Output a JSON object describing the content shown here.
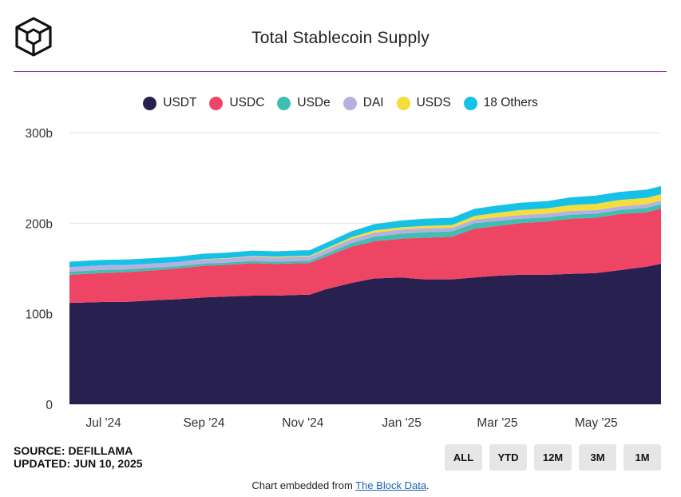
{
  "header": {
    "title": "Total Stablecoin Supply"
  },
  "footer": {
    "source": "SOURCE: DEFILLAMA",
    "updated": "UPDATED: JUN 10, 2025",
    "embed_prefix": "Chart embedded from ",
    "embed_link": "The Block Data",
    "embed_suffix": "."
  },
  "range_buttons": [
    {
      "label": "ALL"
    },
    {
      "label": "YTD"
    },
    {
      "label": "12M"
    },
    {
      "label": "3M"
    },
    {
      "label": "1M"
    }
  ],
  "chart_data": {
    "type": "area",
    "title": "Total Stablecoin Supply",
    "stacked": true,
    "x": [
      "2024-06-10",
      "2024-07-01",
      "2024-07-15",
      "2024-08-01",
      "2024-08-15",
      "2024-09-01",
      "2024-09-15",
      "2024-10-01",
      "2024-10-15",
      "2024-11-01",
      "2024-11-05",
      "2024-11-15",
      "2024-12-01",
      "2024-12-15",
      "2025-01-01",
      "2025-01-15",
      "2025-02-01",
      "2025-02-15",
      "2025-03-01",
      "2025-03-15",
      "2025-04-01",
      "2025-04-15",
      "2025-05-01",
      "2025-05-15",
      "2025-06-01",
      "2025-06-10"
    ],
    "x_ticks": [
      "Jul '24",
      "Sep '24",
      "Nov '24",
      "Jan '25",
      "Mar '25",
      "May '25"
    ],
    "x_tick_dates": [
      "2024-07-01",
      "2024-09-01",
      "2024-11-01",
      "2025-01-01",
      "2025-03-01",
      "2025-05-01"
    ],
    "y_ticks": [
      "0",
      "100b",
      "200b",
      "300b"
    ],
    "ylim": [
      0,
      300
    ],
    "y_unit": "b",
    "grid": true,
    "legend_position": "top",
    "series": [
      {
        "name": "USDT",
        "color": "#28204f",
        "values": [
          112,
          113,
          113,
          115,
          116,
          118,
          119,
          120,
          120,
          121,
          121,
          127,
          134,
          139,
          140,
          138,
          138,
          140,
          142,
          143,
          143,
          144,
          145,
          148,
          152,
          155
        ]
      },
      {
        "name": "USDC",
        "color": "#ef4565",
        "values": [
          31,
          32,
          33,
          33,
          34,
          35,
          35,
          36,
          35,
          35,
          35,
          36,
          40,
          41,
          43,
          46,
          47,
          54,
          55,
          57,
          59,
          61,
          61,
          62,
          60,
          61
        ]
      },
      {
        "name": "USDe",
        "color": "#3fbfb2",
        "values": [
          3.5,
          3.5,
          3,
          3,
          2.5,
          2.5,
          2.5,
          2.5,
          2.5,
          2.5,
          2.5,
          3,
          4,
          5,
          5.5,
          6,
          6,
          6,
          5.5,
          5,
          4.5,
          4.5,
          4.5,
          4.5,
          5,
          5
        ]
      },
      {
        "name": "DAI",
        "color": "#b6b0e0",
        "values": [
          5,
          5,
          5,
          4.5,
          4.5,
          4.5,
          4.5,
          4.5,
          4.5,
          4.5,
          4.5,
          4.5,
          4.5,
          4.5,
          4.5,
          4.5,
          4,
          4,
          4,
          4,
          4,
          4,
          4,
          4,
          4,
          4
        ]
      },
      {
        "name": "USDS",
        "color": "#f5de3b",
        "values": [
          0,
          0,
          0,
          0,
          0,
          0.3,
          0.5,
          0.8,
          1,
          1,
          1,
          1.5,
          2,
          2.5,
          2.5,
          2.5,
          3,
          4,
          5,
          5.5,
          6,
          6.5,
          7,
          7,
          7,
          7
        ]
      },
      {
        "name": "18 Others",
        "color": "#16c1e8",
        "values": [
          6,
          6,
          6,
          6,
          6,
          6,
          6,
          6,
          6,
          6,
          6,
          6,
          6.5,
          7,
          7.5,
          8,
          8,
          8,
          8,
          8,
          8,
          8.5,
          9,
          9,
          9,
          9
        ]
      }
    ]
  }
}
